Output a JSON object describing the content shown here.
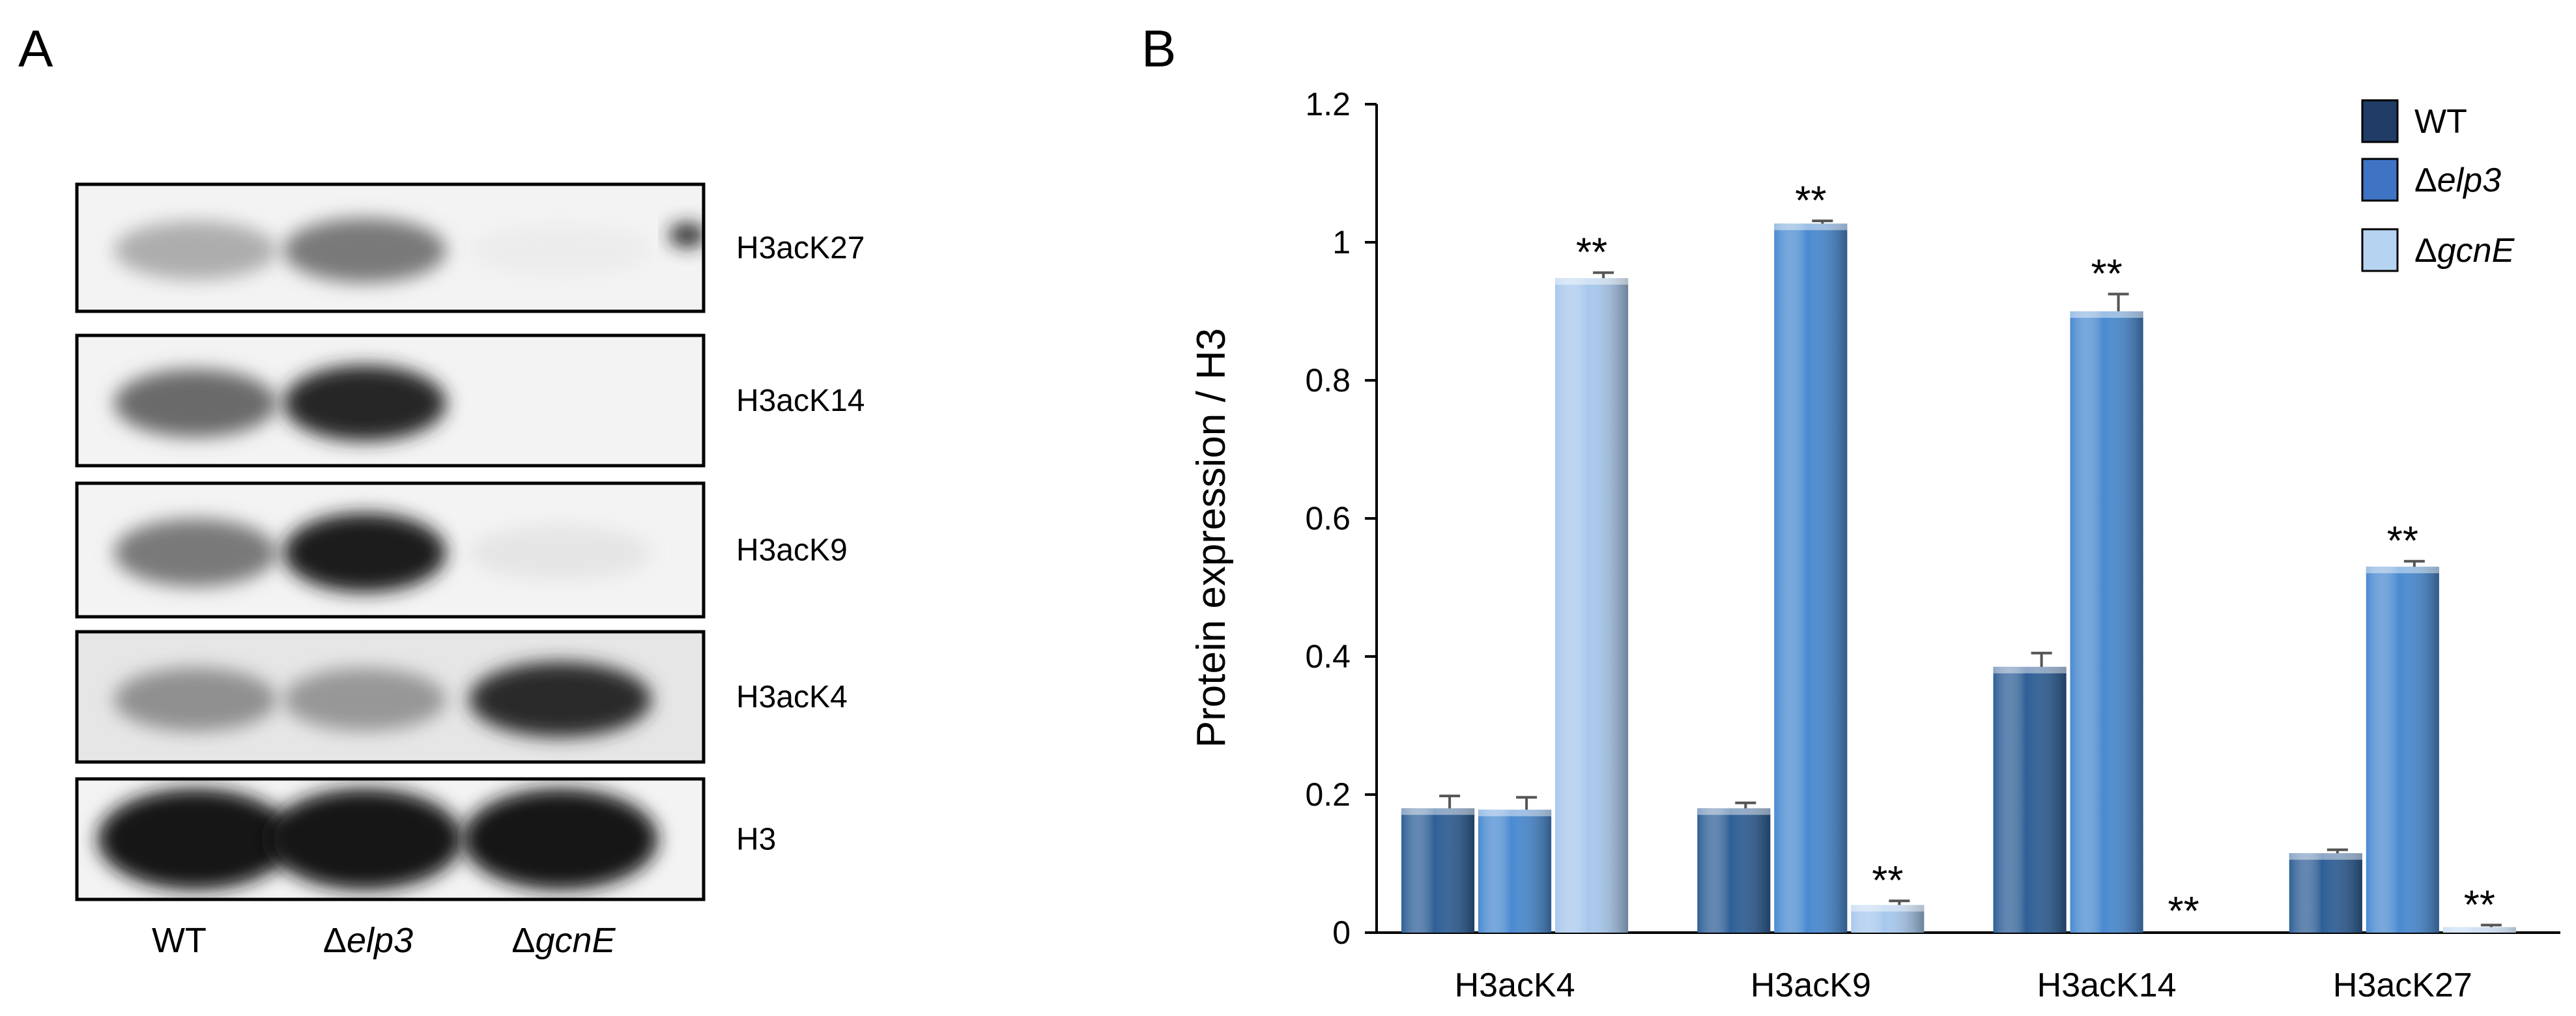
{
  "panel_a": {
    "label": "A",
    "blots": [
      {
        "name": "H3acK27",
        "intensity": [
          0.32,
          0.55,
          0.04
        ],
        "speck": true
      },
      {
        "name": "H3acK14",
        "intensity": [
          0.62,
          0.92,
          0.0
        ],
        "speck": false
      },
      {
        "name": "H3acK9",
        "intensity": [
          0.55,
          0.97,
          0.07
        ],
        "speck": false
      },
      {
        "name": "H3acK4",
        "intensity": [
          0.45,
          0.42,
          0.9
        ],
        "speck": false
      },
      {
        "name": "H3",
        "intensity": [
          1.0,
          1.0,
          1.0
        ],
        "speck": false
      }
    ],
    "lanes": [
      {
        "prefix": "",
        "label": "WT"
      },
      {
        "prefix": "Δ",
        "label": "elp3"
      },
      {
        "prefix": "Δ",
        "label": "gcnE"
      }
    ]
  },
  "panel_b": {
    "label": "B",
    "chart_data": {
      "type": "bar",
      "ylabel": "Protein expression / H3",
      "ylim": [
        0,
        1.2
      ],
      "yticks": [
        0,
        0.2,
        0.4,
        0.6,
        0.8,
        1,
        1.2
      ],
      "ytick_labels": [
        "0",
        "0.2",
        "0.4",
        "0.6",
        "0.8",
        "1",
        "1.2"
      ],
      "categories": [
        "H3acK4",
        "H3acK9",
        "H3acK14",
        "H3acK27"
      ],
      "series": [
        {
          "name": "WT",
          "legend_prefix": "",
          "color": "#2f5f97",
          "values": [
            0.18,
            0.18,
            0.385,
            0.115
          ],
          "errors": [
            0.018,
            0.008,
            0.02,
            0.005
          ],
          "sig": [
            "",
            "",
            "",
            ""
          ]
        },
        {
          "name": "elp3",
          "legend_prefix": "Δ",
          "color": "#4a8ad0",
          "values": [
            0.178,
            1.027,
            0.9,
            0.53
          ],
          "errors": [
            0.018,
            0.004,
            0.025,
            0.008
          ],
          "sig": [
            "",
            "**",
            "**",
            "**"
          ]
        },
        {
          "name": "gcnE",
          "legend_prefix": "Δ",
          "color": "#a8c8ec",
          "values": [
            0.948,
            0.04,
            0.0,
            0.008
          ],
          "errors": [
            0.008,
            0.006,
            0.0,
            0.003
          ],
          "sig": [
            "**",
            "**",
            "**",
            "**"
          ]
        }
      ],
      "legend": {
        "placement": "top-right",
        "swatch_colors": [
          "#1f3d66",
          "#3f74c4",
          "#b7d3f2"
        ]
      },
      "grid": false
    }
  }
}
